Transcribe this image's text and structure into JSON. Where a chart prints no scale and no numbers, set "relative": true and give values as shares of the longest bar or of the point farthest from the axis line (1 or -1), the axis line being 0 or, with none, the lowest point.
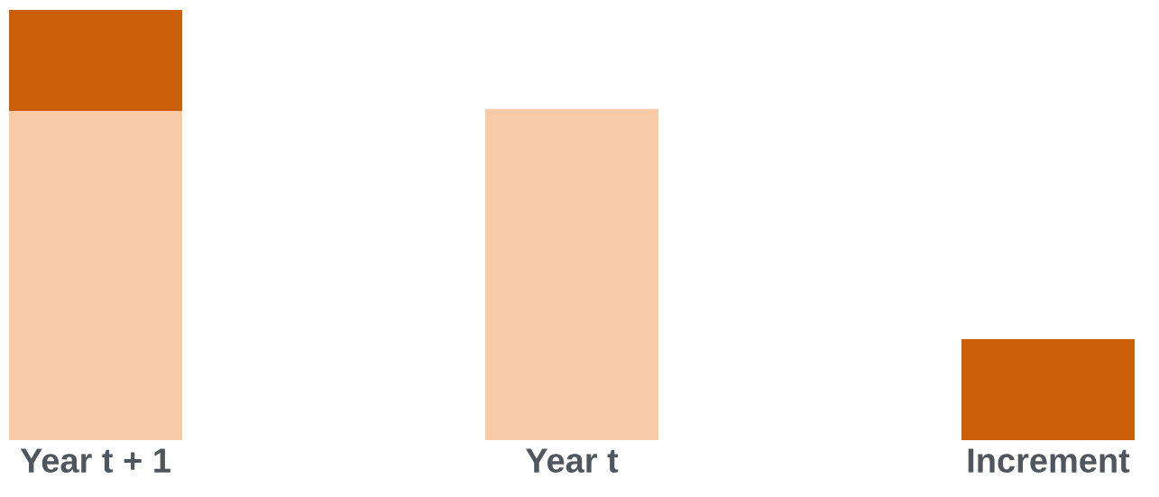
{
  "chart_data": {
    "type": "bar",
    "relative": true,
    "stacked": true,
    "categories": [
      "Year  t + 1",
      "Year  t",
      "Increment"
    ],
    "series": [
      {
        "color": "#f8cba8",
        "values": [
          0.765,
          0.77,
          null
        ]
      },
      {
        "color": "#cc5f0a",
        "values": [
          0.235,
          null,
          0.235
        ]
      }
    ]
  }
}
